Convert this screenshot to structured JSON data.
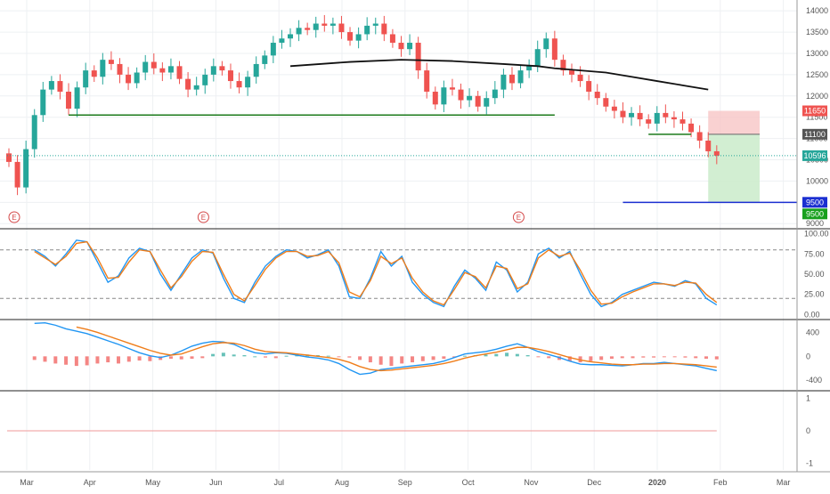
{
  "colors": {
    "up": "#26a69a",
    "down": "#ef5350",
    "grid": "#eef0f3",
    "panel_border": "#222222",
    "support_line": "#1b7a1b",
    "long_ma": "#111111",
    "stop_zone": "#f7c6c6",
    "target_zone": "#cdeccd",
    "blue_line": "#1b2fd1",
    "stoch_k": "#2196f3",
    "stoch_d": "#ef7d1a",
    "macd": "#2196f3",
    "signal": "#ef7d1a",
    "bottom_line": "#ef9a9a"
  },
  "x_axis": {
    "labels": [
      {
        "text": "Mar",
        "bold": false
      },
      {
        "text": "Apr",
        "bold": false
      },
      {
        "text": "May",
        "bold": false
      },
      {
        "text": "Jun",
        "bold": false
      },
      {
        "text": "Jul",
        "bold": false
      },
      {
        "text": "Aug",
        "bold": false
      },
      {
        "text": "Sep",
        "bold": false
      },
      {
        "text": "Oct",
        "bold": false
      },
      {
        "text": "Nov",
        "bold": false
      },
      {
        "text": "Dec",
        "bold": false
      },
      {
        "text": "2020",
        "bold": true
      },
      {
        "text": "Feb",
        "bold": false
      },
      {
        "text": "Mar",
        "bold": false
      }
    ]
  },
  "chart_data": [
    {
      "type": "candlestick",
      "y_ticks": [
        "14000",
        "13500",
        "13000",
        "12500",
        "12000",
        "11500",
        "11000",
        "10500",
        "10000",
        "9500",
        "9000"
      ],
      "ylim": [
        8900,
        14150
      ],
      "earnings_marker": "E",
      "earnings_at": [
        "Mar",
        "Jun",
        "Nov"
      ],
      "price_tags": [
        {
          "value": 11650,
          "text": "11650",
          "style": "stop"
        },
        {
          "value": 11100,
          "text": "11100",
          "style": "entry"
        },
        {
          "value": 10596,
          "text": "10596",
          "style": "last"
        },
        {
          "value": 9500,
          "text": "9500",
          "style": "blue"
        },
        {
          "value": 9500,
          "text": "9500",
          "style": "target"
        }
      ],
      "close_series": [
        10450,
        9850,
        10750,
        11550,
        12150,
        12350,
        12100,
        11700,
        12200,
        12600,
        12450,
        12850,
        12750,
        12500,
        12300,
        12550,
        12800,
        12650,
        12550,
        12700,
        12400,
        12150,
        12250,
        12500,
        12700,
        12600,
        12350,
        12200,
        12450,
        12750,
        12950,
        13250,
        13350,
        13450,
        13600,
        13550,
        13700,
        13650,
        13700,
        13500,
        13300,
        13450,
        13650,
        13700,
        13450,
        13250,
        13100,
        13250,
        12600,
        12100,
        11800,
        12200,
        12150,
        11900,
        12000,
        11750,
        11950,
        12150,
        12500,
        12300,
        12600,
        12700,
        13100,
        13350,
        12850,
        12600,
        12500,
        12350,
        12100,
        11950,
        11750,
        11650,
        11500,
        11600,
        11450,
        11350,
        11600,
        11500,
        11450,
        11350,
        11150,
        10950,
        10700,
        10596
      ],
      "long_ma": [
        [
          33,
          12700
        ],
        [
          40,
          12800
        ],
        [
          46,
          12850
        ],
        [
          52,
          12820
        ],
        [
          58,
          12750
        ],
        [
          62,
          12700
        ],
        [
          64,
          12650
        ],
        [
          67,
          12600
        ],
        [
          70,
          12550
        ],
        [
          73,
          12450
        ],
        [
          76,
          12350
        ],
        [
          79,
          12250
        ],
        [
          82,
          12150
        ]
      ],
      "support_level": 11550,
      "support_range_x": [
        7,
        64
      ],
      "entry_line_range_x": [
        75,
        80
      ],
      "blue_level": 9500,
      "blue_range_x": [
        72,
        95
      ],
      "stop_zone": {
        "from": 11100,
        "to": 11650,
        "range_x": [
          82,
          95
        ]
      },
      "target_zone": {
        "from": 9500,
        "to": 11100,
        "range_x": [
          82,
          95
        ]
      }
    },
    {
      "type": "line",
      "name_series": [
        "stoch_k",
        "stoch_d"
      ],
      "y_ticks": [
        "100.00",
        "75.00",
        "50.00",
        "25.00",
        "0.00"
      ],
      "ylim": [
        -5,
        105
      ],
      "levels": [
        80,
        20
      ],
      "series": [
        {
          "values": [
            80,
            72,
            60,
            75,
            92,
            90,
            65,
            40,
            48,
            70,
            82,
            78,
            50,
            30,
            50,
            70,
            80,
            76,
            45,
            20,
            15,
            40,
            60,
            72,
            80,
            78,
            70,
            74,
            80,
            60,
            22,
            20,
            45,
            78,
            60,
            72,
            40,
            25,
            15,
            10,
            35,
            55,
            45,
            30,
            65,
            55,
            28,
            40,
            75,
            82,
            70,
            78,
            50,
            25,
            10,
            15,
            25,
            30,
            35,
            40,
            38,
            35,
            42,
            38,
            20,
            12
          ]
        },
        {
          "values": [
            78,
            70,
            62,
            72,
            88,
            90,
            70,
            45,
            46,
            65,
            80,
            78,
            55,
            33,
            47,
            66,
            78,
            77,
            50,
            25,
            17,
            36,
            56,
            70,
            78,
            78,
            72,
            73,
            78,
            64,
            28,
            22,
            42,
            72,
            63,
            70,
            45,
            28,
            17,
            12,
            31,
            52,
            47,
            33,
            60,
            57,
            32,
            38,
            70,
            80,
            72,
            76,
            55,
            30,
            13,
            14,
            22,
            28,
            33,
            38,
            38,
            36,
            40,
            39,
            25,
            15
          ]
        }
      ]
    },
    {
      "type": "line",
      "name_series": [
        "macd",
        "signal"
      ],
      "y_ticks": [
        "400",
        "0",
        "-400"
      ],
      "ylim": [
        -560,
        600
      ],
      "histogram": [
        -60,
        -90,
        -120,
        -140,
        -160,
        -150,
        -120,
        -100,
        -120,
        -90,
        -70,
        -80,
        -60,
        -40,
        -50,
        -40,
        -30,
        40,
        60,
        30,
        20,
        0,
        -20,
        -30,
        10,
        20,
        30,
        20,
        10,
        -10,
        -20,
        -60,
        -100,
        -140,
        -160,
        -120,
        -100,
        -80,
        -60,
        -40,
        -20,
        10,
        20,
        30,
        40,
        60,
        40,
        20,
        -10,
        -30,
        -60,
        -80,
        -100,
        -80,
        -60,
        -40,
        -30,
        -30,
        -20,
        -20,
        -10,
        -10,
        -20,
        -30,
        -40,
        -50
      ],
      "series": [
        {
          "values": [
            550,
            560,
            520,
            460,
            420,
            380,
            320,
            260,
            200,
            130,
            60,
            10,
            -20,
            20,
            90,
            170,
            220,
            250,
            240,
            200,
            120,
            60,
            40,
            60,
            50,
            20,
            -10,
            -30,
            -60,
            -120,
            -220,
            -300,
            -280,
            -220,
            -200,
            -180,
            -160,
            -140,
            -120,
            -80,
            -20,
            40,
            60,
            80,
            120,
            170,
            210,
            150,
            80,
            30,
            -20,
            -80,
            -130,
            -140,
            -140,
            -150,
            -160,
            -140,
            -120,
            -120,
            -100,
            -120,
            -140,
            -160,
            -200,
            -240
          ]
        },
        {
          "values": [
            null,
            null,
            null,
            null,
            490,
            450,
            400,
            340,
            280,
            220,
            160,
            100,
            50,
            20,
            40,
            100,
            160,
            210,
            230,
            220,
            180,
            120,
            80,
            70,
            60,
            40,
            20,
            0,
            -20,
            -50,
            -100,
            -170,
            -220,
            -240,
            -230,
            -210,
            -190,
            -170,
            -150,
            -120,
            -80,
            -30,
            10,
            40,
            70,
            110,
            150,
            150,
            120,
            80,
            30,
            -20,
            -60,
            -90,
            -110,
            -130,
            -140,
            -140,
            -130,
            -130,
            -120,
            -120,
            -130,
            -140,
            -160,
            -180
          ]
        }
      ]
    },
    {
      "type": "line",
      "y_ticks": [
        "1",
        "0",
        "-1"
      ],
      "ylim": [
        -1.2,
        1.2
      ],
      "level": 0
    }
  ]
}
